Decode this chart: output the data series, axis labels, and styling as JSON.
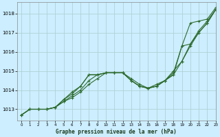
{
  "title": "Graphe pression niveau de la mer (hPa)",
  "bg_color": "#cceeff",
  "grid_color": "#aacccc",
  "line_color": "#2d6a2d",
  "xlim": [
    -0.5,
    23
  ],
  "ylim": [
    1012.4,
    1018.6
  ],
  "yticks": [
    1013,
    1014,
    1015,
    1016,
    1017,
    1018
  ],
  "xticks": [
    0,
    1,
    2,
    3,
    4,
    5,
    6,
    7,
    8,
    9,
    10,
    11,
    12,
    13,
    14,
    15,
    16,
    17,
    18,
    19,
    20,
    21,
    22,
    23
  ],
  "lines": [
    [
      1012.7,
      1013.0,
      1013.0,
      1013.0,
      1013.1,
      1013.4,
      1013.6,
      1013.9,
      1014.3,
      1014.6,
      1014.9,
      1014.9,
      1014.9,
      1014.5,
      1014.2,
      1014.1,
      1014.2,
      1014.5,
      1014.8,
      1015.5,
      1016.3,
      1017.0,
      1017.5,
      1018.2
    ],
    [
      1012.7,
      1013.0,
      1013.0,
      1013.0,
      1013.1,
      1013.4,
      1013.7,
      1014.0,
      1014.5,
      1014.8,
      1014.9,
      1014.9,
      1014.9,
      1014.5,
      1014.2,
      1014.1,
      1014.2,
      1014.5,
      1015.0,
      1015.5,
      1016.4,
      1017.0,
      1017.5,
      1018.2
    ],
    [
      1012.7,
      1013.0,
      1013.0,
      1013.0,
      1013.1,
      1013.5,
      1013.8,
      1014.2,
      1014.8,
      1014.8,
      1014.9,
      1014.9,
      1014.9,
      1014.5,
      1014.2,
      1014.1,
      1014.2,
      1014.5,
      1014.9,
      1016.3,
      1016.4,
      1017.1,
      1017.6,
      1018.2
    ],
    [
      1012.7,
      1013.0,
      1013.0,
      1013.0,
      1013.1,
      1013.5,
      1013.9,
      1014.2,
      1014.8,
      1014.8,
      1014.9,
      1014.9,
      1014.9,
      1014.6,
      1014.3,
      1014.1,
      1014.3,
      1014.5,
      1014.8,
      1016.3,
      1017.5,
      1017.6,
      1017.7,
      1018.3
    ]
  ]
}
